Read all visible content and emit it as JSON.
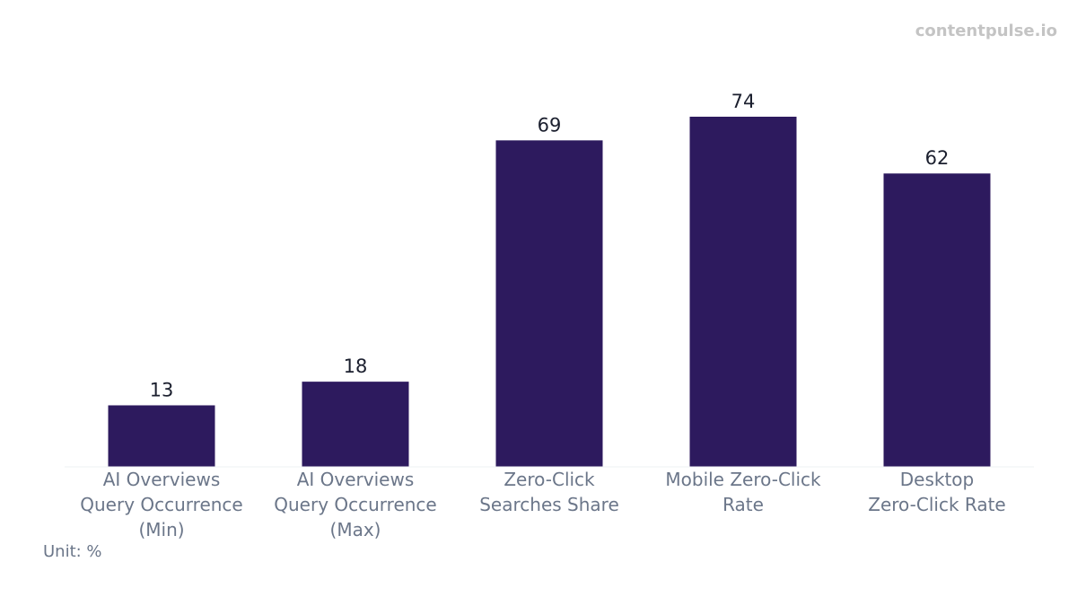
{
  "watermark": "contentpulse.io",
  "unit_label": "Unit: %",
  "chart_data": {
    "type": "bar",
    "categories": [
      [
        "AI Overviews",
        "Query Occurrence",
        "(Min)"
      ],
      [
        "AI Overviews",
        "Query Occurrence",
        "(Max)"
      ],
      [
        "Zero-Click",
        "Searches Share"
      ],
      [
        "Mobile Zero-Click",
        "Rate"
      ],
      [
        "Desktop",
        "Zero-Click Rate"
      ]
    ],
    "values": [
      13,
      18,
      69,
      74,
      62
    ],
    "ylim": [
      0,
      74
    ],
    "grid": false,
    "bar_color": "#2d1a5e",
    "label_color": "#1b1f2e",
    "tick_color": "#6b7689",
    "baseline_color": "#eef0f3"
  }
}
